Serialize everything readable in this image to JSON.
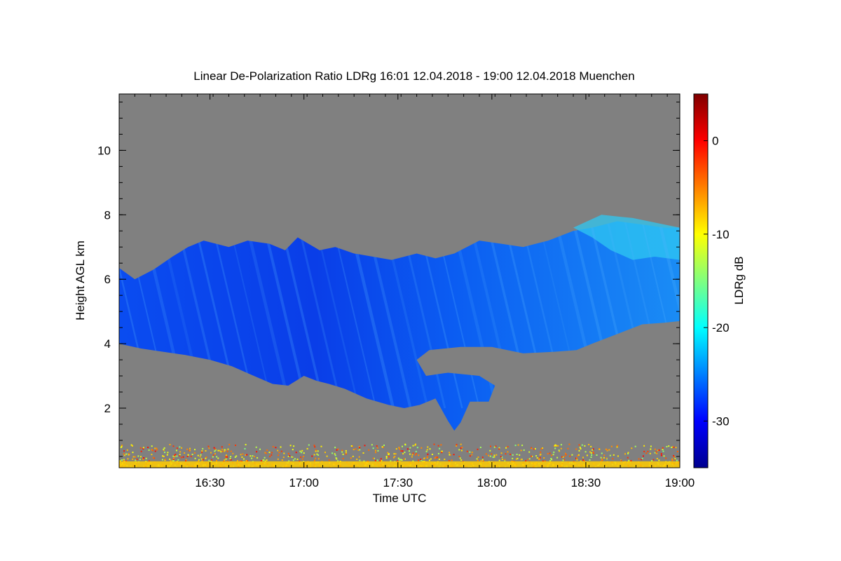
{
  "chart_data": {
    "type": "heatmap",
    "title": "Linear De-Polarization Ratio LDRg   16:01 12.04.2018 - 19:00 12.04.2018 Muenchen",
    "xlabel": "Time UTC",
    "ylabel": "Height AGL km",
    "colorbar_label": "LDRg dB",
    "x_range_minutes_utc": [
      961,
      1140
    ],
    "x_ticks": [
      {
        "label": "16:30",
        "minute": 990
      },
      {
        "label": "17:00",
        "minute": 1020
      },
      {
        "label": "17:30",
        "minute": 1050
      },
      {
        "label": "18:00",
        "minute": 1080
      },
      {
        "label": "18:30",
        "minute": 1110
      },
      {
        "label": "19:00",
        "minute": 1140
      }
    ],
    "y_range_km": [
      0.15,
      11.75
    ],
    "y_ticks": [
      2,
      4,
      6,
      8,
      10
    ],
    "colorbar_range_db": [
      -35,
      5
    ],
    "colorbar_ticks": [
      0,
      -10,
      -20,
      -30
    ],
    "background_color": "#808080",
    "colormap": "jet",
    "cloud_base_km": [
      [
        961,
        4.0
      ],
      [
        968,
        3.85
      ],
      [
        975,
        3.75
      ],
      [
        982,
        3.65
      ],
      [
        990,
        3.5
      ],
      [
        997,
        3.3
      ],
      [
        1004,
        3.0
      ],
      [
        1010,
        2.75
      ],
      [
        1015,
        2.7
      ],
      [
        1020,
        3.0
      ],
      [
        1024,
        2.85
      ],
      [
        1028,
        2.75
      ],
      [
        1033,
        2.6
      ],
      [
        1040,
        2.3
      ],
      [
        1047,
        2.1
      ],
      [
        1052,
        2.0
      ],
      [
        1057,
        2.1
      ],
      [
        1062,
        2.3
      ],
      [
        1066,
        1.6
      ],
      [
        1068,
        1.3
      ],
      [
        1070,
        1.55
      ],
      [
        1073,
        2.2
      ],
      [
        1079,
        2.2
      ],
      [
        1081,
        2.7
      ],
      [
        1076,
        3.0
      ],
      [
        1066,
        3.1
      ],
      [
        1059,
        3.0
      ],
      [
        1056,
        3.5
      ],
      [
        1060,
        3.8
      ],
      [
        1070,
        3.9
      ],
      [
        1080,
        3.9
      ],
      [
        1090,
        3.7
      ],
      [
        1100,
        3.75
      ],
      [
        1107,
        3.8
      ],
      [
        1112,
        4.0
      ],
      [
        1120,
        4.3
      ],
      [
        1128,
        4.6
      ],
      [
        1135,
        4.65
      ],
      [
        1140,
        4.7
      ]
    ],
    "cloud_top_km": [
      [
        961,
        6.35
      ],
      [
        966,
        6.0
      ],
      [
        972,
        6.3
      ],
      [
        978,
        6.7
      ],
      [
        983,
        7.0
      ],
      [
        988,
        7.2
      ],
      [
        996,
        7.0
      ],
      [
        1002,
        7.2
      ],
      [
        1009,
        7.1
      ],
      [
        1014,
        6.9
      ],
      [
        1018,
        7.3
      ],
      [
        1025,
        6.9
      ],
      [
        1030,
        7.0
      ],
      [
        1036,
        6.8
      ],
      [
        1042,
        6.7
      ],
      [
        1048,
        6.6
      ],
      [
        1056,
        6.8
      ],
      [
        1062,
        6.65
      ],
      [
        1068,
        6.8
      ],
      [
        1076,
        7.2
      ],
      [
        1083,
        7.1
      ],
      [
        1090,
        7.0
      ],
      [
        1098,
        7.2
      ],
      [
        1106,
        7.5
      ],
      [
        1112,
        7.6
      ],
      [
        1120,
        7.8
      ],
      [
        1128,
        7.7
      ],
      [
        1135,
        7.6
      ],
      [
        1140,
        7.6
      ]
    ],
    "cloud_ldr_db": -29,
    "upper_cloud_ldr_db": -20,
    "low_aerosol_layer": {
      "top_km": 0.9,
      "ldr_db_range": [
        -15,
        0
      ]
    }
  }
}
